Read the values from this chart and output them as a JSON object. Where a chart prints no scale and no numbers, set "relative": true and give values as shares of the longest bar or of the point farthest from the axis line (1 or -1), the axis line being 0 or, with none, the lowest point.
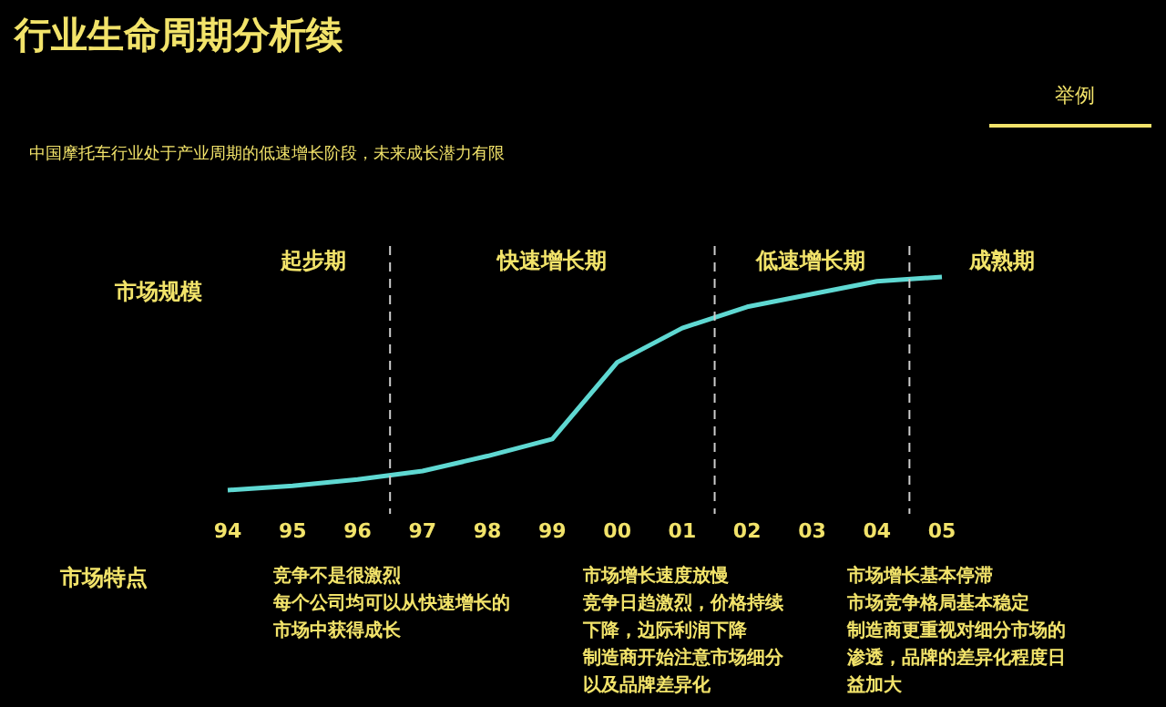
{
  "chart_data": {
    "type": "line",
    "title": "行业生命周期分析续",
    "subtitle": "中国摩托车行业处于产业周期的低速增长阶段，未来成长潜力有限",
    "ylabel": "市场规模",
    "relative": true,
    "x": [
      1994,
      1995,
      1996,
      1997,
      1998,
      1999,
      2000,
      2001,
      2002,
      2003,
      2004,
      2005
    ],
    "xticks": [
      {
        "value": 1994,
        "label": "94"
      },
      {
        "value": 1995,
        "label": "95"
      },
      {
        "value": 1996,
        "label": "96"
      },
      {
        "value": 1997,
        "label": "97"
      },
      {
        "value": 1998,
        "label": "98"
      },
      {
        "value": 1999,
        "label": "99"
      },
      {
        "value": 2000,
        "label": "00"
      },
      {
        "value": 2001,
        "label": "01"
      },
      {
        "value": 2002,
        "label": "02"
      },
      {
        "value": 2003,
        "label": "03"
      },
      {
        "value": 2004,
        "label": "04"
      },
      {
        "value": 2005,
        "label": "05"
      }
    ],
    "series": [
      {
        "color": "#5fd8d2",
        "values": [
          0,
          0.02,
          0.05,
          0.09,
          0.16,
          0.24,
          0.6,
          0.76,
          0.86,
          0.92,
          0.98,
          1
        ]
      }
    ],
    "ref_lines": [
      {
        "axis": "x",
        "value": 1996.5,
        "color": "#cccccc",
        "line_style": "dashed"
      },
      {
        "axis": "x",
        "value": 2001.5,
        "color": "#cccccc",
        "line_style": "dashed"
      },
      {
        "axis": "x",
        "value": 2004.5,
        "color": "#cccccc",
        "line_style": "dashed"
      }
    ],
    "annotations": [
      "举例",
      "市场特点",
      "竞争不是很激烈",
      "每个公司均可以从快速增长的市场中获得成长",
      "市场增长速度放慢",
      "竞争日趋激烈，价格持续下降，边际利润下降",
      "制造商开始注意市场细分以及品牌差异化",
      "市场增长基本停滞",
      "市场竞争格局基本稳定",
      "制造商更重视对细分市场的渗透，品牌的差异化程度日益加大",
      "起步期",
      "快速增长期",
      "低速增长期",
      "成熟期"
    ],
    "xlim": [
      1994,
      2005
    ],
    "grid": false,
    "marker": "none",
    "line_style": "solid"
  }
}
